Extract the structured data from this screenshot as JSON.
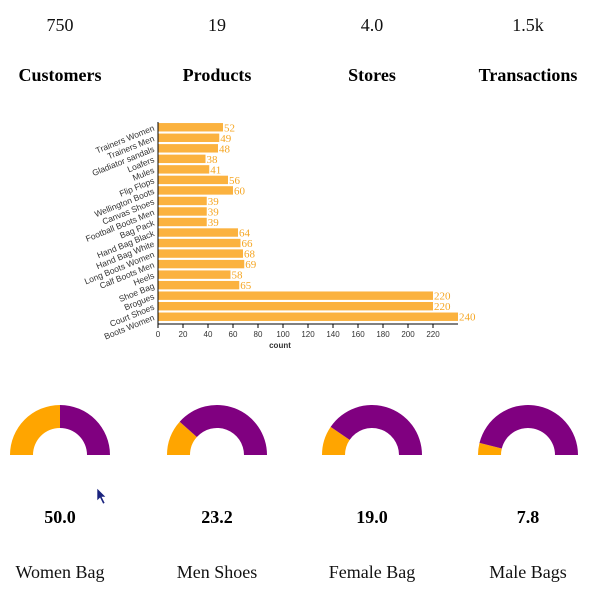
{
  "kpis": [
    {
      "name": "Customers",
      "value": 750
    },
    {
      "name": "Products",
      "value": 19
    },
    {
      "name": "Stores",
      "value": 4,
      "value_label": "4.0"
    },
    {
      "name": "Transactions",
      "value": 1500,
      "value_label": "1.5k"
    }
  ],
  "chart_data": [
    {
      "type": "bar",
      "orientation": "horizontal",
      "x_label": "count",
      "color": "#fbb23f",
      "label_color": "#f5a623",
      "categories": [
        "Trainers Women",
        "Trainers Men",
        "Gladiator sandals",
        "Loafers",
        "Mules",
        "Flip Flops",
        "Wellington Boots",
        "Canvas Shoes",
        "Football Boots Men",
        "Bag Pack",
        "Hand Bag Black",
        "Hand Bag White",
        "Long Boots Women",
        "Calf Boots Men",
        "Heels",
        "Shoe Bag",
        "Brogues",
        "Court Shoes",
        "Boots Women"
      ],
      "values": [
        52,
        49,
        48,
        38,
        41,
        56,
        60,
        39,
        39,
        39,
        64,
        66,
        68,
        69,
        58,
        65,
        220,
        220,
        240
      ],
      "xlim": [
        0,
        240
      ],
      "xticks": [
        0,
        20,
        40,
        60,
        80,
        100,
        120,
        140,
        160,
        180,
        200,
        220
      ]
    },
    {
      "type": "gauge",
      "title": "Women Bag",
      "value": 50,
      "value_label": "50.0",
      "ylim": [
        0,
        100
      ],
      "colors": [
        "#ffa500",
        "#800080"
      ]
    },
    {
      "type": "gauge",
      "title": "Men Shoes",
      "value": 23.2,
      "ylim": [
        0,
        100
      ],
      "colors": [
        "#ffa500",
        "#800080"
      ]
    },
    {
      "type": "gauge",
      "title": "Female Bag",
      "value": 19,
      "value_label": "19.0",
      "ylim": [
        0,
        100
      ],
      "colors": [
        "#ffa500",
        "#800080"
      ]
    },
    {
      "type": "gauge",
      "title": "Male Bags",
      "value": 7.8,
      "ylim": [
        0,
        100
      ],
      "colors": [
        "#ffa500",
        "#800080"
      ]
    }
  ]
}
